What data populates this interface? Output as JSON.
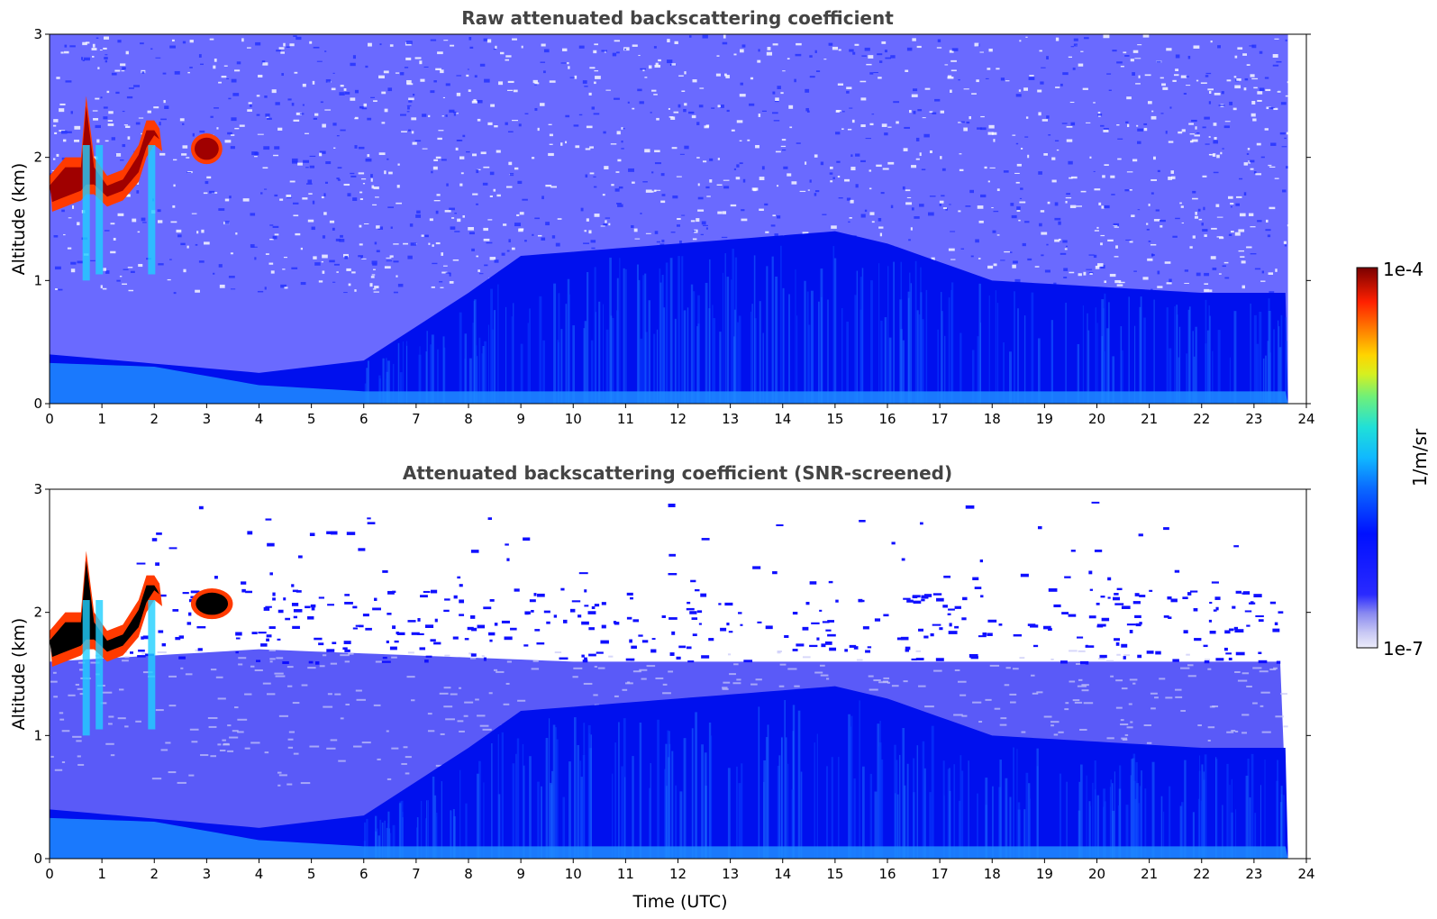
{
  "chart_data": [
    {
      "type": "heatmap",
      "title": "Raw attenuated backscattering coefficient",
      "xlabel": "",
      "ylabel": "Altitude (km)",
      "xlim": [
        0,
        24
      ],
      "ylim": [
        0,
        3
      ],
      "xticks": [
        0,
        1,
        2,
        3,
        4,
        5,
        6,
        7,
        8,
        9,
        10,
        11,
        12,
        13,
        14,
        15,
        16,
        17,
        18,
        19,
        20,
        21,
        22,
        23,
        24
      ],
      "yticks": [
        0,
        1,
        2,
        3
      ],
      "data_extent_hours": [
        0,
        23.65
      ],
      "features": [
        {
          "feature": "cloud layer",
          "time_utc": [
            0,
            2.15
          ],
          "altitude_km": [
            1.4,
            2.6
          ],
          "level": "1e-4"
        },
        {
          "feature": "cloud patch",
          "time_utc": [
            2.7,
            3.3
          ],
          "altitude_km": [
            1.95,
            2.2
          ],
          "level": "1e-4"
        },
        {
          "feature": "boundary layer top",
          "time_utc": [
            0,
            23.65
          ],
          "altitude_km_profile": [
            [
              0,
              0.4
            ],
            [
              4,
              0.25
            ],
            [
              6,
              0.35
            ],
            [
              8,
              0.9
            ],
            [
              9,
              1.2
            ],
            [
              12,
              1.3
            ],
            [
              15,
              1.4
            ],
            [
              16,
              1.3
            ],
            [
              18,
              1.0
            ],
            [
              22,
              0.9
            ],
            [
              23.65,
              0.9
            ]
          ]
        }
      ]
    },
    {
      "type": "heatmap",
      "title": "Attenuated backscattering coefficient (SNR-screened)",
      "xlabel": "Time (UTC)",
      "ylabel": "Altitude (km)",
      "xlim": [
        0,
        24
      ],
      "ylim": [
        0,
        3
      ],
      "xticks": [
        0,
        1,
        2,
        3,
        4,
        5,
        6,
        7,
        8,
        9,
        10,
        11,
        12,
        13,
        14,
        15,
        16,
        17,
        18,
        19,
        20,
        21,
        22,
        23,
        24
      ],
      "yticks": [
        0,
        1,
        2,
        3
      ],
      "data_extent_hours": [
        0,
        23.65
      ],
      "features": [
        {
          "feature": "cloud layer",
          "time_utc": [
            0,
            2.15
          ],
          "altitude_km": [
            1.4,
            2.6
          ],
          "level": "1e-4"
        },
        {
          "feature": "cloud patch",
          "time_utc": [
            2.7,
            3.5
          ],
          "altitude_km": [
            1.95,
            2.2
          ],
          "level": "1e-4"
        },
        {
          "feature": "screened region top",
          "time_utc": [
            0,
            23.65
          ],
          "altitude_km_profile": [
            [
              0,
              1.6
            ],
            [
              4,
              1.7
            ],
            [
              10,
              1.6
            ],
            [
              17,
              1.6
            ],
            [
              23.65,
              1.6
            ]
          ]
        }
      ]
    }
  ],
  "colorbar": {
    "label": "1/m/sr",
    "max_label": "1e-4",
    "min_label": "1e-7",
    "scale": "log"
  },
  "colors": {
    "background": "#ffffff",
    "title": "#444444",
    "cloud_core": "#8b0000",
    "cloud_edge": "#ff4000",
    "aerosol_layer": "#0000ff",
    "near_surface": "#1e90ff"
  }
}
